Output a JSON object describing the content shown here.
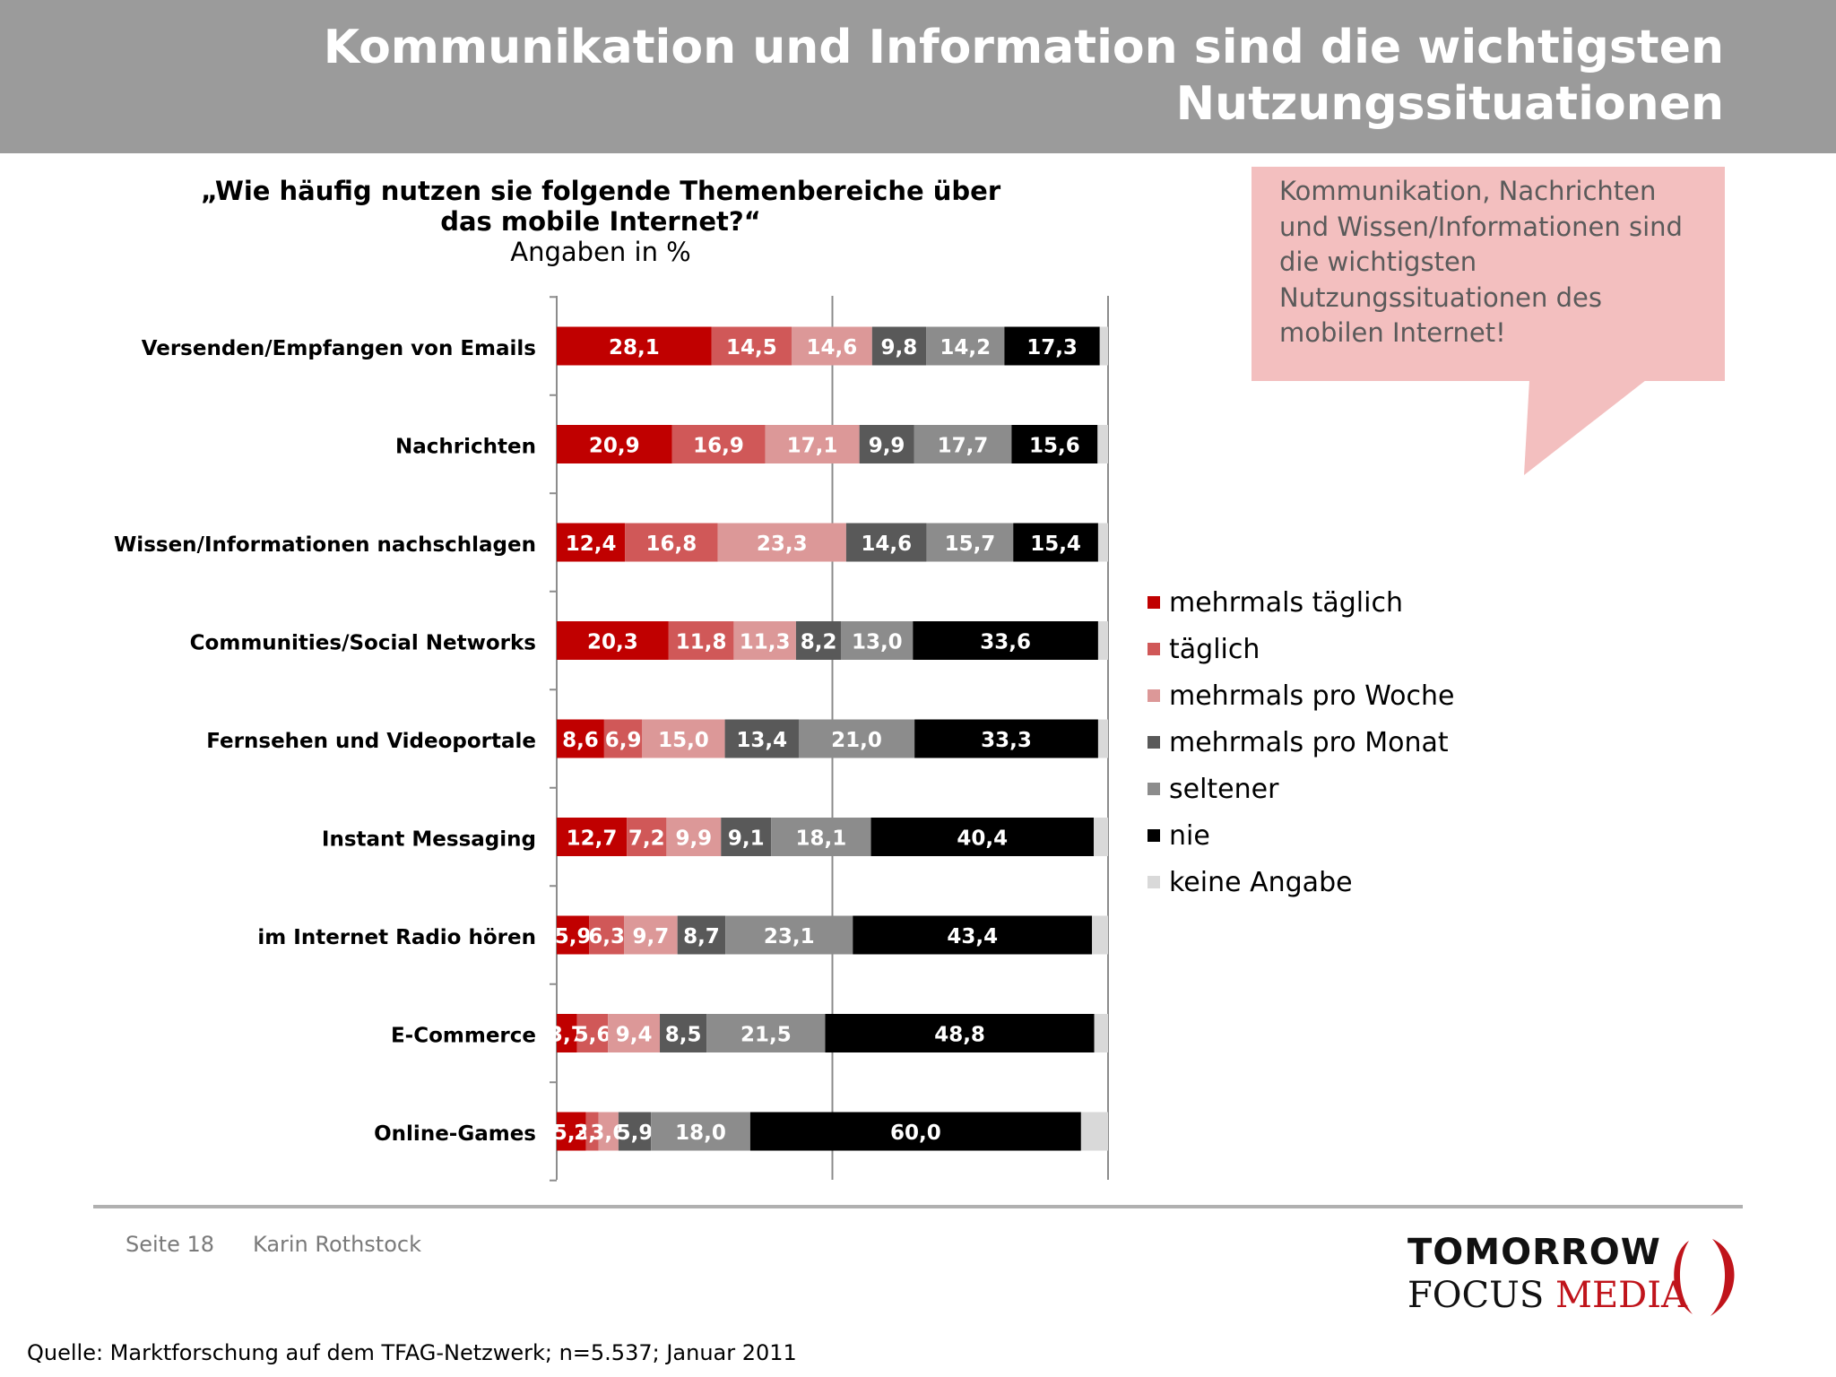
{
  "header": {
    "title": "Kommunikation und Information sind die wichtigsten Nutzungssituationen"
  },
  "question": {
    "text": "„Wie häufig nutzen sie folgende Themenbereiche über das mobile Internet?“",
    "unit": "Angaben in %"
  },
  "callout": {
    "text": "Kommunikation, Nachrichten und Wissen/Informationen sind die wichtigsten Nutzungssituationen des mobilen Internet!"
  },
  "footer": {
    "page": "Seite 18",
    "author": "Karin Rothstock",
    "source": "Quelle: Marktforschung auf dem TFAG-Netzwerk; n=5.537; Januar 2011"
  },
  "logo": {
    "line1": "TOMORROW",
    "line2_focus": "FOCUS",
    "line2_media": "MEDIA"
  },
  "colors": {
    "header_bg": "#9b9b9b",
    "callout_bg": "#f3bfbf"
  },
  "chart_data": {
    "type": "bar",
    "orientation": "horizontal",
    "stacked": true,
    "xlim": [
      0,
      100
    ],
    "grid": true,
    "legend_position": "right",
    "categories": [
      "Versenden/Empfangen von Emails",
      "Nachrichten",
      "Wissen/Informationen nachschlagen",
      "Communities/Social Networks",
      "Fernsehen und Videoportale",
      "Instant Messaging",
      "im Internet Radio hören",
      "E-Commerce",
      "Online-Games"
    ],
    "series": [
      {
        "name": "mehrmals täglich",
        "color": "#c00000",
        "labels": [
          "28,1",
          "20,9",
          "12,4",
          "20,3",
          "8,6",
          "12,7",
          "5,9",
          "3,7",
          "5,3"
        ],
        "values": [
          28.1,
          20.9,
          12.4,
          20.3,
          8.6,
          12.7,
          5.9,
          3.7,
          5.3
        ]
      },
      {
        "name": "täglich",
        "color": "#d05858",
        "labels": [
          "14,5",
          "16,9",
          "16,8",
          "11,8",
          "6,9",
          "7,2",
          "6,3",
          "5,6",
          "2,3"
        ],
        "values": [
          14.5,
          16.9,
          16.8,
          11.8,
          6.9,
          7.2,
          6.3,
          5.6,
          2.3
        ]
      },
      {
        "name": "mehrmals pro Woche",
        "color": "#dc9898",
        "labels": [
          "14,6",
          "17,1",
          "23,3",
          "11,3",
          "15,0",
          "9,9",
          "9,7",
          "9,4",
          "3,6"
        ],
        "values": [
          14.6,
          17.1,
          23.3,
          11.3,
          15.0,
          9.9,
          9.7,
          9.4,
          3.6
        ]
      },
      {
        "name": "mehrmals pro Monat",
        "color": "#595959",
        "labels": [
          "9,8",
          "9,9",
          "14,6",
          "8,2",
          "13,4",
          "9,1",
          "8,7",
          "8,5",
          "5,9"
        ],
        "values": [
          9.8,
          9.9,
          14.6,
          8.2,
          13.4,
          9.1,
          8.7,
          8.5,
          5.9
        ]
      },
      {
        "name": "seltener",
        "color": "#8c8c8c",
        "labels": [
          "14,2",
          "17,7",
          "15,7",
          "13,0",
          "21,0",
          "18,1",
          "23,1",
          "21,5",
          "18,0"
        ],
        "values": [
          14.2,
          17.7,
          15.7,
          13.0,
          21.0,
          18.1,
          23.1,
          21.5,
          18.0
        ]
      },
      {
        "name": "nie",
        "color": "#000000",
        "labels": [
          "17,3",
          "15,6",
          "15,4",
          "33,6",
          "33,3",
          "40,4",
          "43,4",
          "48,8",
          "60,0"
        ],
        "values": [
          17.3,
          15.6,
          15.4,
          33.6,
          33.3,
          40.4,
          43.4,
          48.8,
          60.0
        ]
      },
      {
        "name": "keine Angabe",
        "color": "#d9d9d9",
        "labels": [
          "",
          "",
          "",
          "",
          "",
          "",
          "",
          "",
          ""
        ],
        "values": [
          1.5,
          1.9,
          1.8,
          1.8,
          1.8,
          2.6,
          2.9,
          2.5,
          4.9
        ]
      }
    ]
  }
}
